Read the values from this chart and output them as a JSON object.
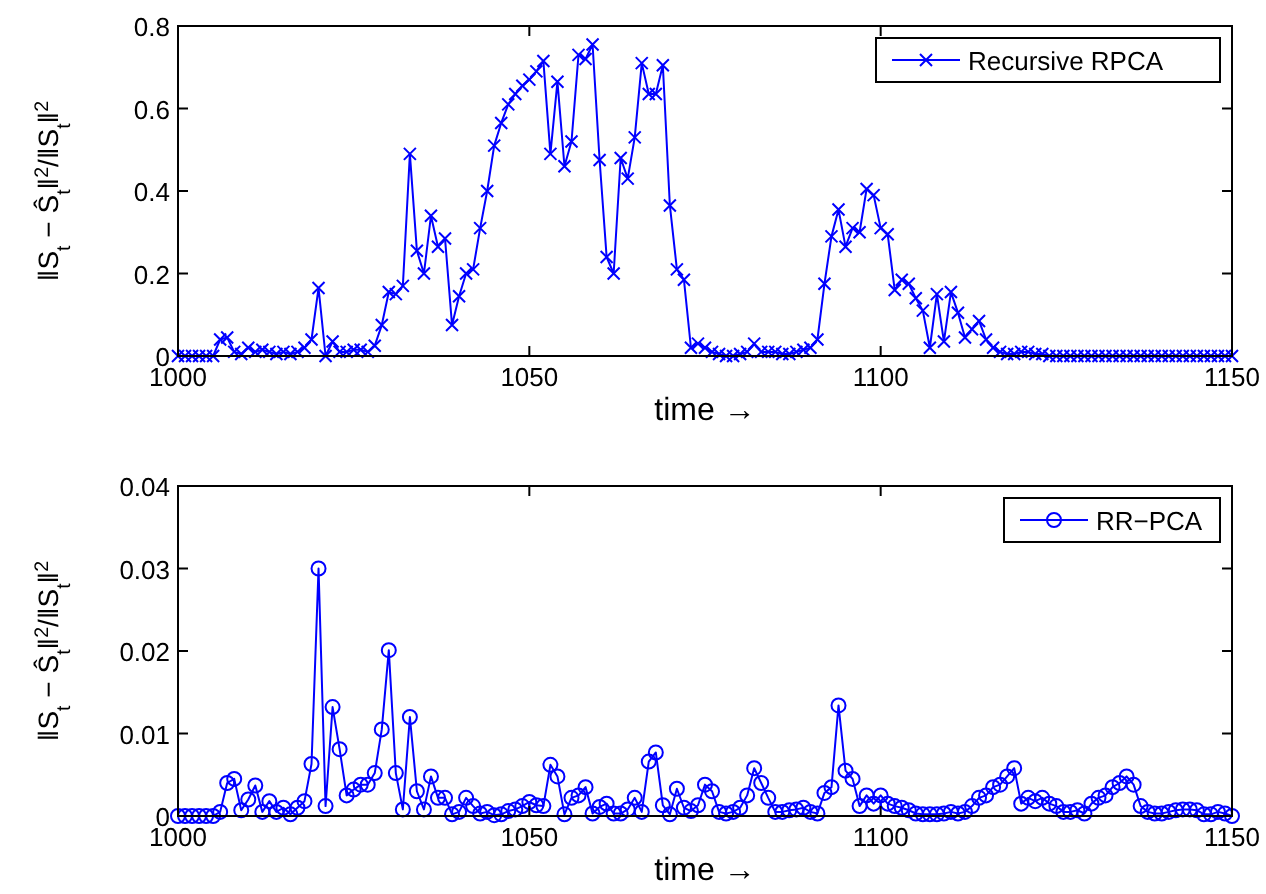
{
  "chart_data": [
    {
      "type": "line",
      "xlabel": "time →",
      "ylabel": "‖S$_{t}$ − Ŝ$_{t}$‖$^{2}$/‖S$_{t}$‖$^{2}$",
      "xlim": [
        1000,
        1150
      ],
      "xticks": [
        1000,
        1050,
        1100,
        1150
      ],
      "ylim": [
        0,
        0.8
      ],
      "yticks": [
        0,
        0.2,
        0.4,
        0.6,
        0.8
      ],
      "grid": false,
      "legend": "top right",
      "marker": "cross",
      "line_style": "solid",
      "x": [
        1000,
        1001,
        1002,
        1003,
        1004,
        1005,
        1006,
        1007,
        1008,
        1009,
        1010,
        1011,
        1012,
        1013,
        1014,
        1015,
        1016,
        1017,
        1018,
        1019,
        1020,
        1021,
        1022,
        1023,
        1024,
        1025,
        1026,
        1027,
        1028,
        1029,
        1030,
        1031,
        1032,
        1033,
        1034,
        1035,
        1036,
        1037,
        1038,
        1039,
        1040,
        1041,
        1042,
        1043,
        1044,
        1045,
        1046,
        1047,
        1048,
        1049,
        1050,
        1051,
        1052,
        1053,
        1054,
        1055,
        1056,
        1057,
        1058,
        1059,
        1060,
        1061,
        1062,
        1063,
        1064,
        1065,
        1066,
        1067,
        1068,
        1069,
        1070,
        1071,
        1072,
        1073,
        1074,
        1075,
        1076,
        1077,
        1078,
        1079,
        1080,
        1081,
        1082,
        1083,
        1084,
        1085,
        1086,
        1087,
        1088,
        1089,
        1090,
        1091,
        1092,
        1093,
        1094,
        1095,
        1096,
        1097,
        1098,
        1099,
        1100,
        1101,
        1102,
        1103,
        1104,
        1105,
        1106,
        1107,
        1108,
        1109,
        1110,
        1111,
        1112,
        1113,
        1114,
        1115,
        1116,
        1117,
        1118,
        1119,
        1120,
        1121,
        1122,
        1123,
        1124,
        1125,
        1126,
        1127,
        1128,
        1129,
        1130,
        1131,
        1132,
        1133,
        1134,
        1135,
        1136,
        1137,
        1138,
        1139,
        1140,
        1141,
        1142,
        1143,
        1144,
        1145,
        1146,
        1147,
        1148,
        1149,
        1150
      ],
      "series": [
        {
          "name": "Recursive RPCA",
          "color": "#0000ff",
          "values": [
            0,
            0,
            0,
            0,
            0,
            0,
            0.04,
            0.045,
            0.01,
            0.005,
            0.02,
            0.01,
            0.015,
            0.01,
            0.005,
            0.01,
            0.005,
            0.01,
            0.02,
            0.04,
            0.165,
            0,
            0.035,
            0.01,
            0.01,
            0.015,
            0.015,
            0.01,
            0.025,
            0.075,
            0.155,
            0.15,
            0.17,
            0.49,
            0.255,
            0.2,
            0.34,
            0.265,
            0.285,
            0.075,
            0.145,
            0.2,
            0.21,
            0.31,
            0.4,
            0.51,
            0.565,
            0.61,
            0.635,
            0.655,
            0.67,
            0.69,
            0.715,
            0.49,
            0.665,
            0.46,
            0.52,
            0.73,
            0.72,
            0.755,
            0.475,
            0.24,
            0.2,
            0.48,
            0.43,
            0.53,
            0.71,
            0.635,
            0.635,
            0.705,
            0.365,
            0.21,
            0.185,
            0.02,
            0.03,
            0.02,
            0.01,
            0.005,
            0,
            0,
            0.005,
            0.01,
            0.03,
            0.01,
            0.01,
            0.01,
            0.005,
            0.005,
            0.01,
            0.015,
            0.02,
            0.04,
            0.175,
            0.29,
            0.355,
            0.265,
            0.31,
            0.3,
            0.405,
            0.39,
            0.31,
            0.295,
            0.16,
            0.185,
            0.175,
            0.14,
            0.11,
            0.02,
            0.15,
            0.035,
            0.155,
            0.105,
            0.045,
            0.065,
            0.085,
            0.04,
            0.02,
            0.01,
            0.005,
            0.005,
            0.01,
            0.01,
            0.005,
            0.005,
            0,
            0,
            0,
            0,
            0,
            0,
            0,
            0,
            0,
            0,
            0,
            0,
            0,
            0,
            0,
            0,
            0,
            0,
            0,
            0,
            0,
            0,
            0,
            0,
            0,
            0,
            0
          ]
        }
      ]
    },
    {
      "type": "line",
      "xlabel": "time →",
      "ylabel": "‖S$_{t}$ − Ŝ$_{t}$‖$^{2}$/‖S$_{t}$‖$^{2}$",
      "xlim": [
        1000,
        1150
      ],
      "xticks": [
        1000,
        1050,
        1100,
        1150
      ],
      "ylim": [
        0,
        0.04
      ],
      "yticks": [
        0,
        0.01,
        0.02,
        0.03,
        0.04
      ],
      "grid": false,
      "legend": "top right",
      "marker": "circle",
      "line_style": "solid",
      "x": [
        1000,
        1001,
        1002,
        1003,
        1004,
        1005,
        1006,
        1007,
        1008,
        1009,
        1010,
        1011,
        1012,
        1013,
        1014,
        1015,
        1016,
        1017,
        1018,
        1019,
        1020,
        1021,
        1022,
        1023,
        1024,
        1025,
        1026,
        1027,
        1028,
        1029,
        1030,
        1031,
        1032,
        1033,
        1034,
        1035,
        1036,
        1037,
        1038,
        1039,
        1040,
        1041,
        1042,
        1043,
        1044,
        1045,
        1046,
        1047,
        1048,
        1049,
        1050,
        1051,
        1052,
        1053,
        1054,
        1055,
        1056,
        1057,
        1058,
        1059,
        1060,
        1061,
        1062,
        1063,
        1064,
        1065,
        1066,
        1067,
        1068,
        1069,
        1070,
        1071,
        1072,
        1073,
        1074,
        1075,
        1076,
        1077,
        1078,
        1079,
        1080,
        1081,
        1082,
        1083,
        1084,
        1085,
        1086,
        1087,
        1088,
        1089,
        1090,
        1091,
        1092,
        1093,
        1094,
        1095,
        1096,
        1097,
        1098,
        1099,
        1100,
        1101,
        1102,
        1103,
        1104,
        1105,
        1106,
        1107,
        1108,
        1109,
        1110,
        1111,
        1112,
        1113,
        1114,
        1115,
        1116,
        1117,
        1118,
        1119,
        1120,
        1121,
        1122,
        1123,
        1124,
        1125,
        1126,
        1127,
        1128,
        1129,
        1130,
        1131,
        1132,
        1133,
        1134,
        1135,
        1136,
        1137,
        1138,
        1139,
        1140,
        1141,
        1142,
        1143,
        1144,
        1145,
        1146,
        1147,
        1148,
        1149,
        1150
      ],
      "series": [
        {
          "name": "RR−PCA",
          "color": "#0000ff",
          "values": [
            0,
            0,
            0,
            0,
            0,
            0,
            0.0005,
            0.004,
            0.0045,
            0.0007,
            0.002,
            0.0037,
            0.0005,
            0.0018,
            0.0005,
            0.001,
            0.0002,
            0.001,
            0.0018,
            0.0063,
            0.03,
            0.0012,
            0.0132,
            0.0081,
            0.0025,
            0.0032,
            0.0038,
            0.0038,
            0.0052,
            0.0105,
            0.0201,
            0.0052,
            0.0008,
            0.012,
            0.003,
            0.0008,
            0.0048,
            0.0022,
            0.0022,
            0.0002,
            0.0005,
            0.0022,
            0.0012,
            0.0003,
            0.0005,
            0.0001,
            0.0002,
            0.0006,
            0.0008,
            0.0012,
            0.0017,
            0.0013,
            0.0012,
            0.0062,
            0.0048,
            0.0002,
            0.0022,
            0.0025,
            0.0035,
            0.0003,
            0.0011,
            0.0015,
            0.0003,
            0.0003,
            0.0008,
            0.0022,
            0.0005,
            0.0066,
            0.0077,
            0.0013,
            0.0002,
            0.0033,
            0.001,
            0.0006,
            0.0013,
            0.0038,
            0.003,
            0.0005,
            0.0003,
            0.0005,
            0.001,
            0.0025,
            0.0058,
            0.004,
            0.0022,
            0.0005,
            0.0005,
            0.0007,
            0.0008,
            0.001,
            0.0005,
            0.0003,
            0.0028,
            0.0035,
            0.0134,
            0.0055,
            0.0045,
            0.0012,
            0.0025,
            0.0015,
            0.0025,
            0.0015,
            0.0012,
            0.001,
            0.0007,
            0.0003,
            0.0002,
            0.0002,
            0.0002,
            0.0003,
            0.0005,
            0.0003,
            0.0005,
            0.0012,
            0.0022,
            0.0025,
            0.0035,
            0.0038,
            0.0048,
            0.0058,
            0.0015,
            0.0022,
            0.0018,
            0.0022,
            0.0015,
            0.0012,
            0.0005,
            0.0005,
            0.0007,
            0.0003,
            0.0015,
            0.0022,
            0.0025,
            0.0035,
            0.004,
            0.0048,
            0.0038,
            0.0012,
            0.0005,
            0.0003,
            0.0003,
            0.0005,
            0.0007,
            0.0008,
            0.0008,
            0.0007,
            0.0002,
            0.0002,
            0.0005,
            0.0003,
            0
          ]
        }
      ]
    }
  ]
}
